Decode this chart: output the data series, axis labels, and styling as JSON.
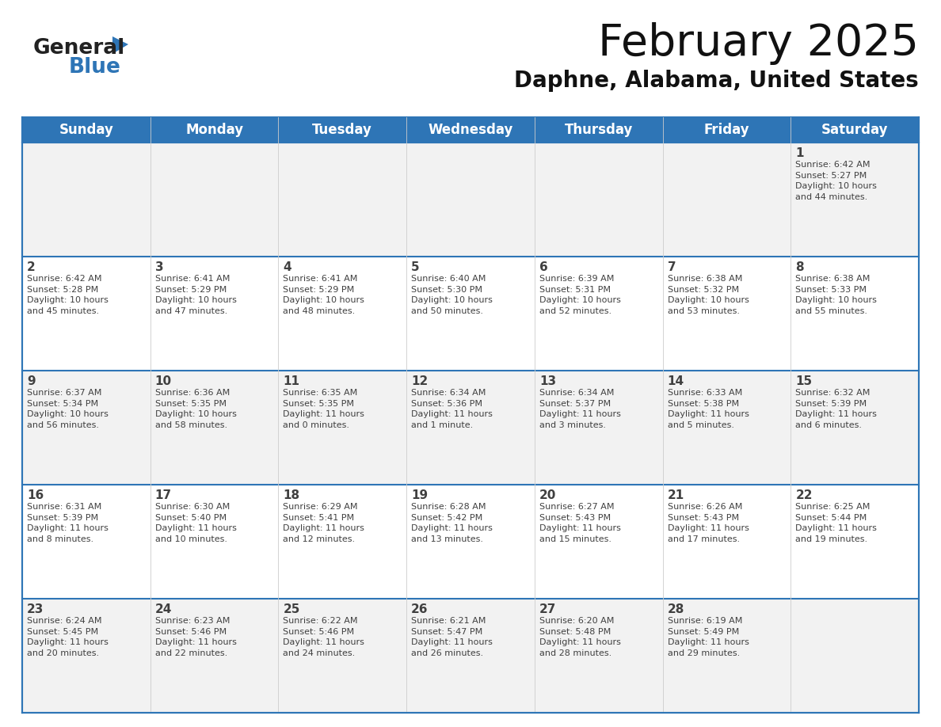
{
  "title": "February 2025",
  "subtitle": "Daphne, Alabama, United States",
  "header_bg_color": "#2e75b6",
  "header_text_color": "#ffffff",
  "border_color": "#2e75b6",
  "cell_bg_even": "#f2f2f2",
  "cell_bg_odd": "#ffffff",
  "text_color": "#404040",
  "day_names": [
    "Sunday",
    "Monday",
    "Tuesday",
    "Wednesday",
    "Thursday",
    "Friday",
    "Saturday"
  ],
  "weeks": [
    [
      {
        "day": null,
        "info": null
      },
      {
        "day": null,
        "info": null
      },
      {
        "day": null,
        "info": null
      },
      {
        "day": null,
        "info": null
      },
      {
        "day": null,
        "info": null
      },
      {
        "day": null,
        "info": null
      },
      {
        "day": 1,
        "info": "Sunrise: 6:42 AM\nSunset: 5:27 PM\nDaylight: 10 hours\nand 44 minutes."
      }
    ],
    [
      {
        "day": 2,
        "info": "Sunrise: 6:42 AM\nSunset: 5:28 PM\nDaylight: 10 hours\nand 45 minutes."
      },
      {
        "day": 3,
        "info": "Sunrise: 6:41 AM\nSunset: 5:29 PM\nDaylight: 10 hours\nand 47 minutes."
      },
      {
        "day": 4,
        "info": "Sunrise: 6:41 AM\nSunset: 5:29 PM\nDaylight: 10 hours\nand 48 minutes."
      },
      {
        "day": 5,
        "info": "Sunrise: 6:40 AM\nSunset: 5:30 PM\nDaylight: 10 hours\nand 50 minutes."
      },
      {
        "day": 6,
        "info": "Sunrise: 6:39 AM\nSunset: 5:31 PM\nDaylight: 10 hours\nand 52 minutes."
      },
      {
        "day": 7,
        "info": "Sunrise: 6:38 AM\nSunset: 5:32 PM\nDaylight: 10 hours\nand 53 minutes."
      },
      {
        "day": 8,
        "info": "Sunrise: 6:38 AM\nSunset: 5:33 PM\nDaylight: 10 hours\nand 55 minutes."
      }
    ],
    [
      {
        "day": 9,
        "info": "Sunrise: 6:37 AM\nSunset: 5:34 PM\nDaylight: 10 hours\nand 56 minutes."
      },
      {
        "day": 10,
        "info": "Sunrise: 6:36 AM\nSunset: 5:35 PM\nDaylight: 10 hours\nand 58 minutes."
      },
      {
        "day": 11,
        "info": "Sunrise: 6:35 AM\nSunset: 5:35 PM\nDaylight: 11 hours\nand 0 minutes."
      },
      {
        "day": 12,
        "info": "Sunrise: 6:34 AM\nSunset: 5:36 PM\nDaylight: 11 hours\nand 1 minute."
      },
      {
        "day": 13,
        "info": "Sunrise: 6:34 AM\nSunset: 5:37 PM\nDaylight: 11 hours\nand 3 minutes."
      },
      {
        "day": 14,
        "info": "Sunrise: 6:33 AM\nSunset: 5:38 PM\nDaylight: 11 hours\nand 5 minutes."
      },
      {
        "day": 15,
        "info": "Sunrise: 6:32 AM\nSunset: 5:39 PM\nDaylight: 11 hours\nand 6 minutes."
      }
    ],
    [
      {
        "day": 16,
        "info": "Sunrise: 6:31 AM\nSunset: 5:39 PM\nDaylight: 11 hours\nand 8 minutes."
      },
      {
        "day": 17,
        "info": "Sunrise: 6:30 AM\nSunset: 5:40 PM\nDaylight: 11 hours\nand 10 minutes."
      },
      {
        "day": 18,
        "info": "Sunrise: 6:29 AM\nSunset: 5:41 PM\nDaylight: 11 hours\nand 12 minutes."
      },
      {
        "day": 19,
        "info": "Sunrise: 6:28 AM\nSunset: 5:42 PM\nDaylight: 11 hours\nand 13 minutes."
      },
      {
        "day": 20,
        "info": "Sunrise: 6:27 AM\nSunset: 5:43 PM\nDaylight: 11 hours\nand 15 minutes."
      },
      {
        "day": 21,
        "info": "Sunrise: 6:26 AM\nSunset: 5:43 PM\nDaylight: 11 hours\nand 17 minutes."
      },
      {
        "day": 22,
        "info": "Sunrise: 6:25 AM\nSunset: 5:44 PM\nDaylight: 11 hours\nand 19 minutes."
      }
    ],
    [
      {
        "day": 23,
        "info": "Sunrise: 6:24 AM\nSunset: 5:45 PM\nDaylight: 11 hours\nand 20 minutes."
      },
      {
        "day": 24,
        "info": "Sunrise: 6:23 AM\nSunset: 5:46 PM\nDaylight: 11 hours\nand 22 minutes."
      },
      {
        "day": 25,
        "info": "Sunrise: 6:22 AM\nSunset: 5:46 PM\nDaylight: 11 hours\nand 24 minutes."
      },
      {
        "day": 26,
        "info": "Sunrise: 6:21 AM\nSunset: 5:47 PM\nDaylight: 11 hours\nand 26 minutes."
      },
      {
        "day": 27,
        "info": "Sunrise: 6:20 AM\nSunset: 5:48 PM\nDaylight: 11 hours\nand 28 minutes."
      },
      {
        "day": 28,
        "info": "Sunrise: 6:19 AM\nSunset: 5:49 PM\nDaylight: 11 hours\nand 29 minutes."
      },
      {
        "day": null,
        "info": null
      }
    ]
  ]
}
